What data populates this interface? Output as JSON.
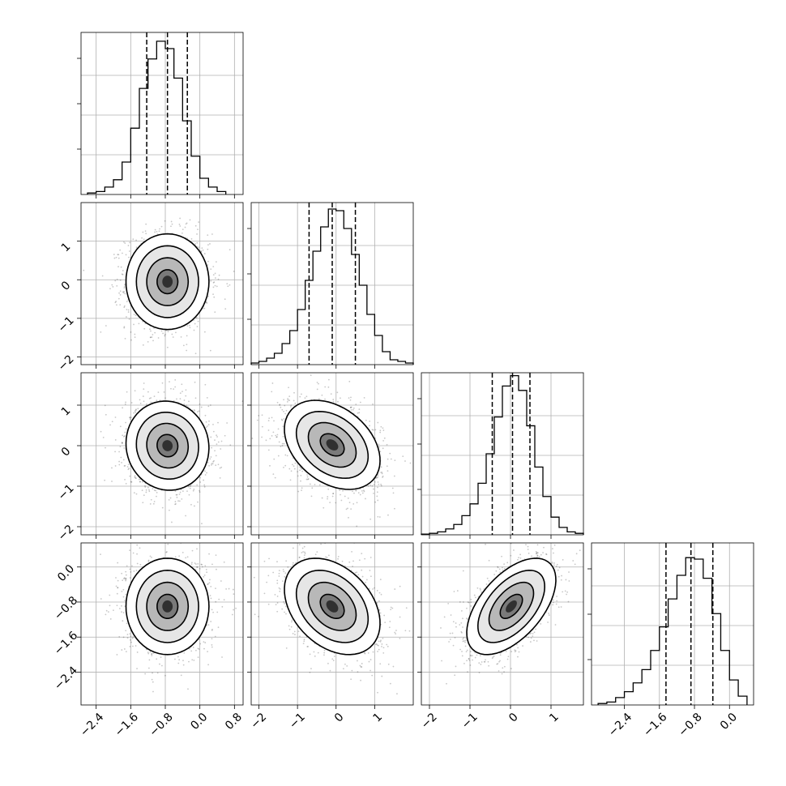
{
  "chart_data": {
    "type": "corner",
    "parameters": 4,
    "grid": true,
    "quantile_levels": [
      0.16,
      0.5,
      0.84
    ],
    "axes": [
      {
        "range": [
          -2.75,
          1.0
        ],
        "ticks": [
          -2.4,
          -1.6,
          -0.8,
          0.0,
          0.8
        ],
        "tick_labels": [
          "−2.4",
          "−1.6",
          "−0.8",
          "0.0",
          "0.8"
        ]
      },
      {
        "range": [
          -2.2,
          2.0
        ],
        "ticks": [
          -2,
          -1,
          0,
          1
        ],
        "tick_labels": [
          "−2",
          "−1",
          "0",
          "1"
        ]
      },
      {
        "range": [
          -2.2,
          1.8
        ],
        "ticks": [
          -2,
          -1,
          0,
          1
        ],
        "tick_labels": [
          "−2",
          "−1",
          "0",
          "1"
        ]
      },
      {
        "range": [
          -3.15,
          0.55
        ],
        "ticks": [
          -2.4,
          -1.6,
          -0.8,
          0.0
        ],
        "tick_labels": [
          "−2.4",
          "−1.6",
          "−0.8",
          "0.0"
        ]
      }
    ],
    "diagonal_histograms": [
      {
        "parameter": 0,
        "bins": [
          -2.6,
          -2.4,
          -2.2,
          -2.0,
          -1.8,
          -1.6,
          -1.4,
          -1.2,
          -1.0,
          -0.8,
          -0.6,
          -0.4,
          -0.2,
          0.0,
          0.2,
          0.4,
          0.6
        ],
        "counts": [
          1,
          2,
          5,
          10,
          22,
          45,
          72,
          92,
          104,
          99,
          79,
          50,
          26,
          11,
          5,
          2
        ],
        "quantiles": [
          -1.23,
          -0.75,
          -0.29
        ],
        "ylim": [
          0,
          110
        ]
      },
      {
        "parameter": 1,
        "bins": [
          -2.2,
          -2.0,
          -1.8,
          -1.6,
          -1.4,
          -1.2,
          -1.0,
          -0.8,
          -0.6,
          -0.4,
          -0.2,
          0.0,
          0.2,
          0.4,
          0.6,
          0.8,
          1.0,
          1.2,
          1.4,
          1.6,
          1.8,
          2.0
        ],
        "counts": [
          1,
          2,
          4,
          7,
          13,
          21,
          34,
          52,
          70,
          85,
          96,
          95,
          84,
          68,
          49,
          31,
          18,
          8,
          3,
          2,
          1
        ],
        "quantiles": [
          -0.7,
          -0.1,
          0.5
        ],
        "ylim": [
          0,
          100
        ]
      },
      {
        "parameter": 2,
        "bins": [
          -2.2,
          -2.0,
          -1.8,
          -1.6,
          -1.4,
          -1.2,
          -1.0,
          -0.8,
          -0.6,
          -0.4,
          -0.2,
          0.0,
          0.2,
          0.4,
          0.6,
          0.8,
          1.0,
          1.2,
          1.4,
          1.6,
          1.8
        ],
        "counts": [
          0.5,
          1,
          2,
          4,
          7,
          13,
          21,
          35,
          55,
          80,
          101,
          108,
          98,
          74,
          46,
          26,
          12,
          5,
          2,
          1
        ],
        "quantiles": [
          -0.45,
          0.05,
          0.48
        ],
        "ylim": [
          0,
          110
        ]
      },
      {
        "parameter": 3,
        "bins": [
          -3.0,
          -2.8,
          -2.6,
          -2.4,
          -2.2,
          -2.0,
          -1.8,
          -1.6,
          -1.4,
          -1.2,
          -1.0,
          -0.8,
          -0.6,
          -0.4,
          -0.2,
          0.0,
          0.2,
          0.4
        ],
        "counts": [
          1,
          2,
          5,
          9,
          15,
          24,
          37,
          53,
          72,
          88,
          100,
          99,
          86,
          62,
          37,
          17,
          6
        ],
        "quantiles": [
          -1.45,
          -0.88,
          -0.38
        ],
        "ylim": [
          0,
          110
        ]
      }
    ],
    "joint_panels": [
      {
        "x_param": 0,
        "y_param": 1,
        "mean": [
          -0.75,
          -0.05
        ],
        "sd": [
          0.48,
          0.62
        ],
        "corr": 0.0
      },
      {
        "x_param": 0,
        "y_param": 2,
        "mean": [
          -0.75,
          0.0
        ],
        "sd": [
          0.48,
          0.55
        ],
        "corr": -0.05
      },
      {
        "x_param": 1,
        "y_param": 2,
        "mean": [
          -0.1,
          0.02
        ],
        "sd": [
          0.62,
          0.55
        ],
        "corr": -0.35
      },
      {
        "x_param": 0,
        "y_param": 3,
        "mean": [
          -0.75,
          -0.9
        ],
        "sd": [
          0.48,
          0.55
        ],
        "corr": 0.0
      },
      {
        "x_param": 1,
        "y_param": 3,
        "mean": [
          -0.1,
          -0.9
        ],
        "sd": [
          0.62,
          0.55
        ],
        "corr": -0.35
      },
      {
        "x_param": 2,
        "y_param": 3,
        "mean": [
          0.02,
          -0.9
        ],
        "sd": [
          0.55,
          0.55
        ],
        "corr": 0.55
      }
    ],
    "contour_levels_sigma": [
      0.5,
      1.0,
      1.5,
      2.0
    ]
  }
}
